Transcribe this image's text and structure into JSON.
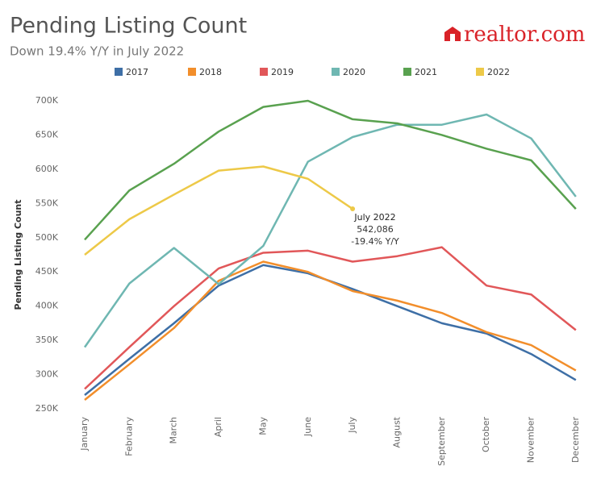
{
  "chart_data": {
    "type": "line",
    "title": "Pending Listing Count",
    "subtitle": "Down 19.4% Y/Y in July 2022",
    "logo": "realtor.com",
    "y_label": "Pending Listing Count",
    "categories": [
      "January",
      "February",
      "March",
      "April",
      "May",
      "June",
      "July",
      "August",
      "September",
      "October",
      "November",
      "December"
    ],
    "series": [
      {
        "name": "2017",
        "color": "#3e6fa6",
        "values": [
          270000,
          323000,
          375000,
          430000,
          460000,
          448000,
          425000,
          400000,
          375000,
          360000,
          330000,
          292000
        ]
      },
      {
        "name": "2018",
        "color": "#f28e2b",
        "values": [
          263000,
          315000,
          368000,
          437000,
          465000,
          450000,
          422000,
          408000,
          390000,
          362000,
          343000,
          306000
        ]
      },
      {
        "name": "2019",
        "color": "#e15759",
        "values": [
          279000,
          340000,
          400000,
          455000,
          478000,
          481000,
          465000,
          473000,
          486000,
          430000,
          417000,
          365000
        ]
      },
      {
        "name": "2020",
        "color": "#6fb7b2",
        "values": [
          340000,
          433000,
          485000,
          432000,
          488000,
          611000,
          647000,
          665000,
          665000,
          680000,
          645000,
          560000
        ]
      },
      {
        "name": "2021",
        "color": "#59a14f",
        "values": [
          497000,
          569000,
          608000,
          655000,
          691000,
          700000,
          673000,
          667000,
          650000,
          630000,
          613000,
          542000
        ]
      },
      {
        "name": "2022",
        "color": "#edc948",
        "values": [
          475000,
          527000,
          563000,
          598000,
          604000,
          586000,
          542086,
          null,
          null,
          null,
          null,
          null
        ]
      }
    ],
    "ylim": [
      250000,
      700000
    ],
    "yticks": [
      {
        "value": 250000,
        "label": "250K"
      },
      {
        "value": 300000,
        "label": "300K"
      },
      {
        "value": 350000,
        "label": "350K"
      },
      {
        "value": 400000,
        "label": "400K"
      },
      {
        "value": 450000,
        "label": "450K"
      },
      {
        "value": 500000,
        "label": "500K"
      },
      {
        "value": 550000,
        "label": "550K"
      },
      {
        "value": 600000,
        "label": "600K"
      },
      {
        "value": 650000,
        "label": "650K"
      },
      {
        "value": 700000,
        "label": "700K"
      }
    ],
    "annotation": {
      "title": "July 2022",
      "value_label": "542,086",
      "change": "-19.4% Y/Y"
    }
  }
}
